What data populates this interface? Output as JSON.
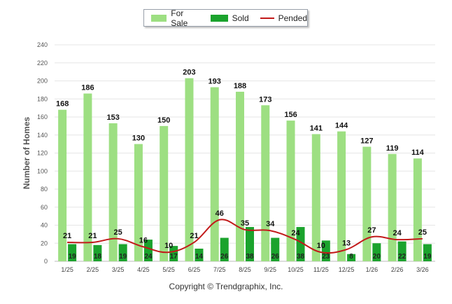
{
  "chart_data": {
    "type": "bar",
    "categories": [
      "1/25",
      "2/25",
      "3/25",
      "4/25",
      "5/25",
      "6/25",
      "7/25",
      "8/25",
      "9/25",
      "10/25",
      "11/25",
      "12/25",
      "1/26",
      "2/26",
      "3/26"
    ],
    "series": [
      {
        "name": "For Sale",
        "kind": "bar",
        "color": "#9ddf82",
        "values": [
          168,
          186,
          153,
          130,
          150,
          203,
          193,
          188,
          173,
          156,
          141,
          144,
          127,
          119,
          114
        ]
      },
      {
        "name": "Sold",
        "kind": "bar",
        "color": "#1ba32d",
        "values": [
          19,
          18,
          19,
          24,
          17,
          14,
          26,
          38,
          26,
          38,
          23,
          8,
          20,
          22,
          19
        ]
      },
      {
        "name": "Pended",
        "kind": "line",
        "color": "#c21a1a",
        "values": [
          21,
          21,
          25,
          16,
          10,
          21,
          46,
          35,
          34,
          24,
          10,
          13,
          27,
          24,
          25
        ]
      }
    ],
    "ylabel": "Number of Homes",
    "xlabel": "",
    "ylim": [
      0,
      240
    ],
    "yticks": [
      0,
      20,
      40,
      60,
      80,
      100,
      120,
      140,
      160,
      180,
      200,
      220,
      240
    ],
    "grid": true,
    "legend_position": "top-center"
  },
  "legend": {
    "for_sale": "For Sale",
    "sold": "Sold",
    "pended": "Pended"
  },
  "footer": {
    "copyright": "Copyright © Trendgraphix, Inc."
  }
}
